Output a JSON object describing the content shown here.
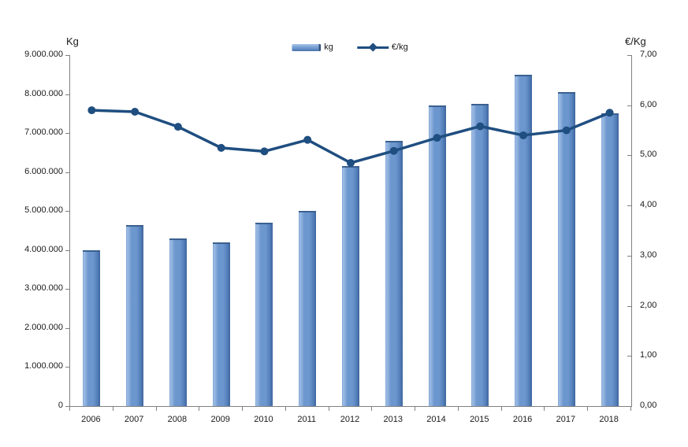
{
  "chart": {
    "left_axis_title": "Kg",
    "right_axis_title": "€/Kg"
  },
  "chart_data": {
    "type": "bar+line",
    "title": "",
    "categories": [
      "2006",
      "2007",
      "2008",
      "2009",
      "2010",
      "2011",
      "2012",
      "2013",
      "2014",
      "2015",
      "2016",
      "2017",
      "2018"
    ],
    "series": [
      {
        "name": "kg",
        "type": "bar",
        "axis": "left",
        "values": [
          4000000,
          4650000,
          4300000,
          4200000,
          4700000,
          5000000,
          6150000,
          6800000,
          7700000,
          7750000,
          8500000,
          8050000,
          7500000
        ]
      },
      {
        "name": "€/kg",
        "type": "line",
        "axis": "right",
        "values": [
          5.9,
          5.87,
          5.57,
          5.15,
          5.08,
          5.31,
          4.85,
          5.09,
          5.35,
          5.58,
          5.4,
          5.5,
          5.85
        ]
      }
    ],
    "left_axis": {
      "title": "Kg",
      "min": 0,
      "max": 9000000,
      "tick_step": 1000000,
      "tick_labels": [
        "0",
        "1.000.000",
        "2.000.000",
        "3.000.000",
        "4.000.000",
        "5.000.000",
        "6.000.000",
        "7.000.000",
        "8.000.000",
        "9.000.000"
      ]
    },
    "right_axis": {
      "title": "€/Kg",
      "min": 0,
      "max": 7,
      "tick_step": 1,
      "tick_labels": [
        "0,00",
        "1,00",
        "2,00",
        "3,00",
        "4,00",
        "5,00",
        "6,00",
        "7,00"
      ]
    },
    "grid": false,
    "legend_position": "top-center",
    "colors": {
      "bar_fill": "#6C96CE",
      "bar_fill_light": "#9DBCE4",
      "bar_fill_dark": "#3E659D",
      "bar_top_border": "#3A608F",
      "line": "#1F4E80",
      "axis": "#808080",
      "text": "#1A1A1A"
    }
  }
}
